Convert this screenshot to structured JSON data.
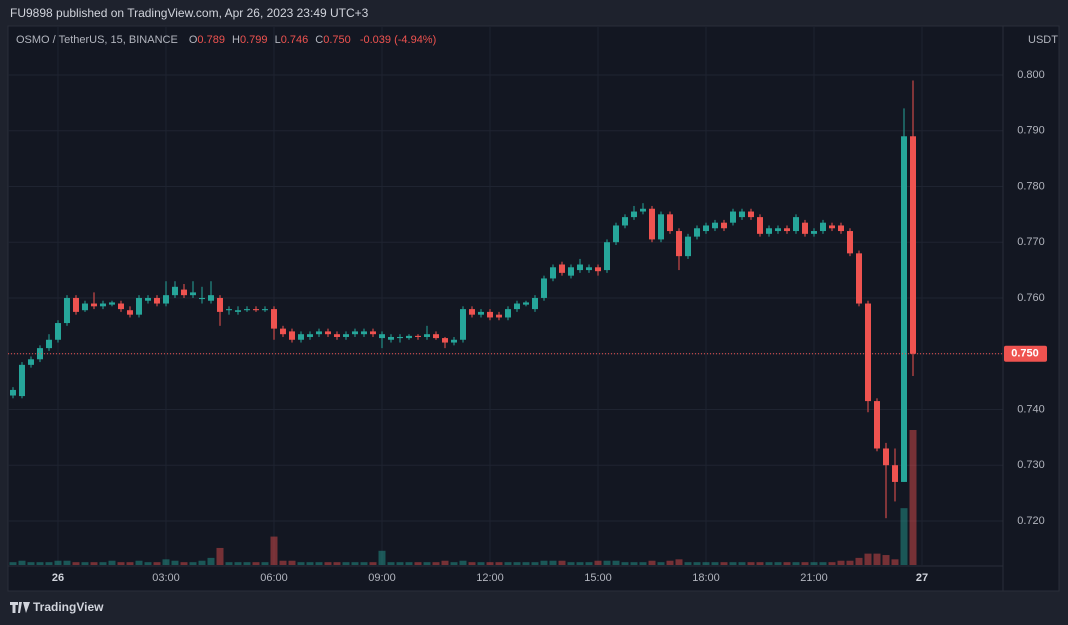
{
  "header": {
    "published": "FU9898 published on TradingView.com, Apr 26, 2023 23:49 UTC+3"
  },
  "chart_data": {
    "type": "candlestick",
    "symbol": "OSMO / TetherUS, 15, BINANCE",
    "legend": {
      "o_key": "O",
      "o": "0.789",
      "h_key": "H",
      "h": "0.799",
      "l_key": "L",
      "l": "0.746",
      "c_key": "C",
      "c": "0.750",
      "change": "-0.039 (-4.94%)"
    },
    "currency": "USDT",
    "last_price_label": "0.750",
    "up_color": "#26a69a",
    "down_color": "#ef5350",
    "x": [
      -1.25,
      -1,
      -0.75,
      -0.5,
      -0.25,
      0,
      0.25,
      0.5,
      0.75,
      1,
      1.25,
      1.5,
      1.75,
      2,
      2.25,
      2.5,
      2.75,
      3,
      3.25,
      3.5,
      3.75,
      4,
      4.25,
      4.5,
      4.75,
      5,
      5.25,
      5.5,
      5.75,
      6,
      6.25,
      6.5,
      6.75,
      7,
      7.25,
      7.5,
      7.75,
      8,
      8.25,
      8.5,
      8.75,
      9,
      9.25,
      9.5,
      9.75,
      10,
      10.25,
      10.5,
      10.75,
      11,
      11.25,
      11.5,
      11.75,
      12,
      12.25,
      12.5,
      12.75,
      13,
      13.25,
      13.5,
      13.75,
      14,
      14.25,
      14.5,
      14.75,
      15,
      15.25,
      15.5,
      15.75,
      16,
      16.25,
      16.5,
      16.75,
      17,
      17.25,
      17.5,
      17.75,
      18,
      18.25,
      18.5,
      18.75,
      19,
      19.25,
      19.5,
      19.75,
      20,
      20.25,
      20.5,
      20.75,
      21,
      21.25,
      21.5,
      21.75,
      22,
      22.25,
      22.5,
      22.75,
      23,
      23.25,
      23.5,
      23.75
    ],
    "open": [
      0.7425,
      0.7424,
      0.748,
      0.749,
      0.751,
      0.7525,
      0.7555,
      0.76,
      0.7578,
      0.759,
      0.7585,
      0.7588,
      0.759,
      0.7578,
      0.757,
      0.7595,
      0.76,
      0.759,
      0.7605,
      0.7615,
      0.7605,
      0.7598,
      0.7595,
      0.76,
      0.7578,
      0.7575,
      0.7578,
      0.758,
      0.7578,
      0.758,
      0.7545,
      0.754,
      0.7525,
      0.753,
      0.7535,
      0.754,
      0.7535,
      0.753,
      0.7535,
      0.7535,
      0.754,
      0.7528,
      0.7525,
      0.7528,
      0.7528,
      0.7532,
      0.753,
      0.7535,
      0.7528,
      0.752,
      0.7525,
      0.758,
      0.757,
      0.7575,
      0.757,
      0.7565,
      0.758,
      0.7588,
      0.758,
      0.76,
      0.7635,
      0.766,
      0.764,
      0.765,
      0.765,
      0.7655,
      0.765,
      0.77,
      0.773,
      0.7745,
      0.7755,
      0.776,
      0.7705,
      0.775,
      0.772,
      0.7675,
      0.771,
      0.772,
      0.7725,
      0.7735,
      0.7735,
      0.7745,
      0.7755,
      0.7745,
      0.7715,
      0.772,
      0.7725,
      0.772,
      0.7735,
      0.7715,
      0.772,
      0.773,
      0.773,
      0.772,
      0.768,
      0.759,
      0.7415,
      0.733,
      0.73,
      0.727,
      0.789
    ],
    "high": [
      0.744,
      0.7485,
      0.7495,
      0.7515,
      0.7535,
      0.756,
      0.7605,
      0.7605,
      0.7595,
      0.761,
      0.7595,
      0.7595,
      0.7595,
      0.7585,
      0.7605,
      0.7605,
      0.7605,
      0.763,
      0.763,
      0.7625,
      0.763,
      0.762,
      0.763,
      0.7605,
      0.7585,
      0.7585,
      0.7585,
      0.7585,
      0.7585,
      0.7585,
      0.755,
      0.7545,
      0.754,
      0.754,
      0.7545,
      0.7545,
      0.754,
      0.754,
      0.7545,
      0.7545,
      0.7545,
      0.754,
      0.7535,
      0.7535,
      0.7535,
      0.7535,
      0.755,
      0.754,
      0.753,
      0.753,
      0.7585,
      0.7585,
      0.758,
      0.758,
      0.7575,
      0.7585,
      0.7595,
      0.7595,
      0.7605,
      0.764,
      0.766,
      0.7665,
      0.766,
      0.767,
      0.766,
      0.766,
      0.7705,
      0.7735,
      0.775,
      0.7765,
      0.777,
      0.7765,
      0.7755,
      0.7755,
      0.7725,
      0.7715,
      0.773,
      0.7735,
      0.774,
      0.774,
      0.776,
      0.776,
      0.776,
      0.775,
      0.773,
      0.773,
      0.773,
      0.775,
      0.774,
      0.7725,
      0.774,
      0.7735,
      0.7735,
      0.7725,
      0.7685,
      0.7595,
      0.742,
      0.734,
      0.733,
      0.794,
      0.799
    ],
    "low": [
      0.742,
      0.742,
      0.7475,
      0.7485,
      0.7505,
      0.752,
      0.755,
      0.757,
      0.7575,
      0.758,
      0.758,
      0.7585,
      0.7575,
      0.7565,
      0.7565,
      0.759,
      0.7585,
      0.7585,
      0.76,
      0.76,
      0.76,
      0.759,
      0.759,
      0.755,
      0.757,
      0.757,
      0.7575,
      0.7575,
      0.7575,
      0.7525,
      0.753,
      0.752,
      0.752,
      0.7525,
      0.753,
      0.753,
      0.7525,
      0.7525,
      0.753,
      0.753,
      0.753,
      0.751,
      0.752,
      0.752,
      0.7525,
      0.7525,
      0.7525,
      0.7525,
      0.751,
      0.7515,
      0.752,
      0.7565,
      0.7565,
      0.756,
      0.756,
      0.756,
      0.7575,
      0.7585,
      0.7575,
      0.7595,
      0.763,
      0.764,
      0.7635,
      0.7645,
      0.7645,
      0.764,
      0.7645,
      0.7695,
      0.7725,
      0.774,
      0.775,
      0.77,
      0.77,
      0.7715,
      0.765,
      0.767,
      0.7705,
      0.7715,
      0.772,
      0.772,
      0.773,
      0.774,
      0.774,
      0.771,
      0.771,
      0.7715,
      0.7715,
      0.7715,
      0.771,
      0.771,
      0.7715,
      0.772,
      0.7715,
      0.7675,
      0.7585,
      0.7395,
      0.7325,
      0.7205,
      0.7235,
      0.727,
      0.746
    ],
    "close": [
      0.7435,
      0.748,
      0.749,
      0.751,
      0.7525,
      0.7555,
      0.76,
      0.7575,
      0.759,
      0.7585,
      0.759,
      0.7592,
      0.758,
      0.757,
      0.76,
      0.76,
      0.759,
      0.7605,
      0.762,
      0.7605,
      0.761,
      0.76,
      0.7605,
      0.7575,
      0.758,
      0.7578,
      0.758,
      0.7578,
      0.758,
      0.7545,
      0.7535,
      0.7525,
      0.7535,
      0.7535,
      0.754,
      0.7535,
      0.753,
      0.7535,
      0.754,
      0.754,
      0.7535,
      0.7535,
      0.753,
      0.753,
      0.7532,
      0.753,
      0.7535,
      0.7528,
      0.752,
      0.7525,
      0.758,
      0.757,
      0.7575,
      0.7565,
      0.7565,
      0.758,
      0.759,
      0.7592,
      0.76,
      0.7635,
      0.7655,
      0.7645,
      0.7655,
      0.766,
      0.7655,
      0.7648,
      0.77,
      0.773,
      0.7745,
      0.7755,
      0.776,
      0.7705,
      0.775,
      0.772,
      0.7675,
      0.771,
      0.7725,
      0.773,
      0.7735,
      0.7725,
      0.7755,
      0.7755,
      0.7745,
      0.7715,
      0.7725,
      0.7725,
      0.772,
      0.7745,
      0.7715,
      0.772,
      0.7735,
      0.7725,
      0.772,
      0.768,
      0.759,
      0.7415,
      0.733,
      0.73,
      0.727,
      0.789,
      0.75
    ],
    "volume": [
      2,
      3,
      2,
      2,
      2,
      3,
      3,
      2,
      2,
      2,
      2,
      3,
      2,
      2,
      3,
      2,
      2,
      4,
      3,
      2,
      2,
      3,
      5,
      12,
      2,
      2,
      2,
      2,
      2,
      20,
      3,
      3,
      2,
      2,
      2,
      2,
      2,
      2,
      2,
      2,
      2,
      10,
      2,
      2,
      2,
      2,
      2,
      2,
      3,
      2,
      3,
      2,
      2,
      2,
      2,
      2,
      2,
      2,
      2,
      3,
      3,
      3,
      2,
      2,
      2,
      3,
      3,
      3,
      2,
      2,
      2,
      3,
      2,
      3,
      4,
      2,
      2,
      2,
      2,
      2,
      2,
      2,
      2,
      2,
      2,
      2,
      2,
      2,
      2,
      2,
      2,
      2,
      3,
      3,
      5,
      8,
      8,
      7,
      4,
      40,
      95
    ],
    "xlim": [
      -1.333,
      26.25
    ],
    "xticks": [
      {
        "value": 0,
        "label": "26"
      },
      {
        "value": 3,
        "label": "03:00"
      },
      {
        "value": 6,
        "label": "06:00"
      },
      {
        "value": 9,
        "label": "09:00"
      },
      {
        "value": 12,
        "label": "12:00"
      },
      {
        "value": 15,
        "label": "15:00"
      },
      {
        "value": 18,
        "label": "18:00"
      },
      {
        "value": 21,
        "label": "21:00"
      },
      {
        "value": 24,
        "label": "27"
      }
    ],
    "ylim": [
      0.7121,
      0.8086
    ],
    "yticks": [
      {
        "value": 0.72,
        "label": "0.720"
      },
      {
        "value": 0.73,
        "label": "0.730"
      },
      {
        "value": 0.74,
        "label": "0.740"
      },
      {
        "value": 0.75,
        "label": "0.750"
      },
      {
        "value": 0.76,
        "label": "0.760"
      },
      {
        "value": 0.77,
        "label": "0.770"
      },
      {
        "value": 0.78,
        "label": "0.780"
      },
      {
        "value": 0.79,
        "label": "0.790"
      },
      {
        "value": 0.8,
        "label": "0.800"
      }
    ],
    "grid": true
  },
  "footer": {
    "brand": "TradingView"
  }
}
